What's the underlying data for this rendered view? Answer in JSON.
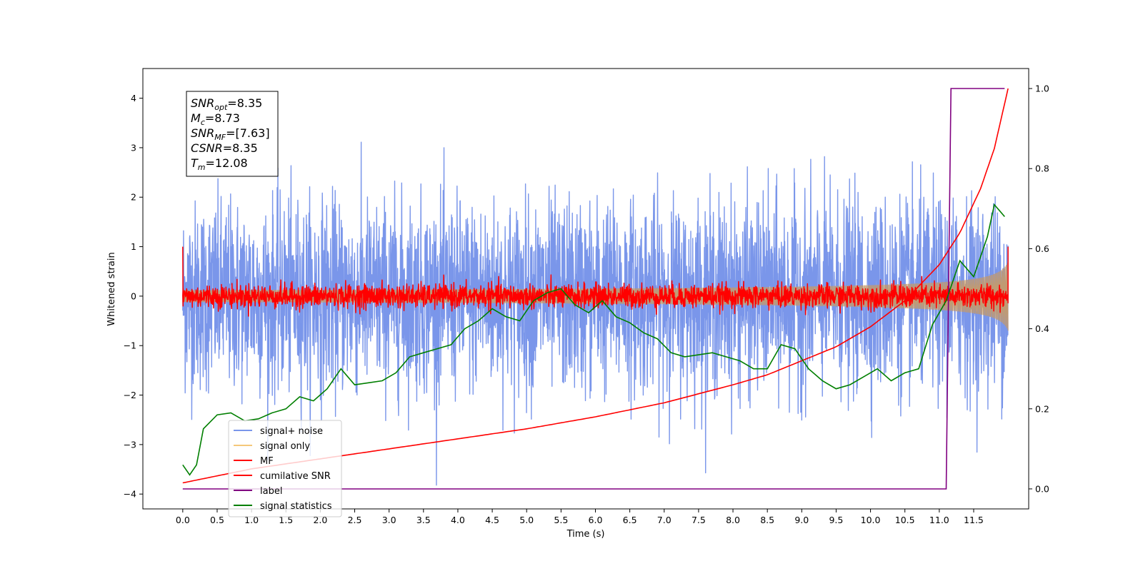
{
  "chart_data": {
    "type": "line",
    "xlabel": "Time (s)",
    "ylabel_left": "Whitened strain",
    "ylabel_right": "",
    "xlim": [
      -0.58,
      12.3
    ],
    "ylim_left": [
      -4.3,
      4.6
    ],
    "ylim_right": [
      -0.05,
      1.05
    ],
    "x_ticks": [
      "0.0",
      "0.5",
      "1.0",
      "1.5",
      "2.0",
      "2.5",
      "3.0",
      "3.5",
      "4.0",
      "4.5",
      "5.0",
      "5.5",
      "6.0",
      "6.5",
      "7.0",
      "7.5",
      "8.0",
      "8.5",
      "9.0",
      "9.5",
      "10.0",
      "10.5",
      "11.0",
      "11.5"
    ],
    "y_ticks_left": [
      -4,
      -3,
      -2,
      -1,
      0,
      1,
      2,
      3,
      4
    ],
    "y_ticks_right": [
      "0.0",
      "0.2",
      "0.4",
      "0.6",
      "0.8",
      "1.0"
    ],
    "grid": false,
    "legend_position": "lower-left",
    "info_box": {
      "lines": [
        {
          "sym": "SNR",
          "sub": "opt",
          "val": "=8.35"
        },
        {
          "sym": "M",
          "sub": "c",
          "val": "=8.73"
        },
        {
          "sym": "SNR",
          "sub": "MF",
          "val": "=[7.63]"
        },
        {
          "sym": "CSNR",
          "sub": "",
          "val": "=8.35"
        },
        {
          "sym": "T",
          "sub": "m",
          "val": "=12.08"
        }
      ]
    },
    "series": [
      {
        "name": "signal+ noise",
        "color": "#7a96ea",
        "axis": "left",
        "kind": "noise",
        "t_end": 12.0,
        "sigma": 0.95
      },
      {
        "name": "signal only",
        "color": "#f5c87a",
        "axis": "left",
        "kind": "chirp",
        "t_end": 12.0
      },
      {
        "name": "MF",
        "color": "#ff0000",
        "axis": "left",
        "kind": "noise",
        "t_end": 12.0,
        "sigma": 0.12
      },
      {
        "name": "cumilative SNR",
        "color": "#ff0000",
        "axis": "right",
        "x": [
          0.0,
          1.0,
          2.0,
          3.0,
          4.0,
          5.0,
          6.0,
          7.0,
          8.0,
          8.5,
          9.0,
          9.5,
          10.0,
          10.5,
          11.0,
          11.3,
          11.6,
          11.8,
          12.0
        ],
        "y": [
          0.015,
          0.05,
          0.075,
          0.1,
          0.125,
          0.15,
          0.18,
          0.215,
          0.26,
          0.285,
          0.32,
          0.355,
          0.405,
          0.47,
          0.56,
          0.64,
          0.75,
          0.85,
          1.0
        ]
      },
      {
        "name": "label",
        "color": "#800080",
        "axis": "right",
        "x": [
          0.0,
          11.1,
          11.17,
          11.95
        ],
        "y": [
          0.0,
          0.0,
          1.0,
          1.0
        ]
      },
      {
        "name": "signal statistics",
        "color": "#007f00",
        "axis": "right",
        "x": [
          0.0,
          0.1,
          0.2,
          0.3,
          0.5,
          0.7,
          0.9,
          1.1,
          1.3,
          1.5,
          1.7,
          1.9,
          2.1,
          2.3,
          2.5,
          2.7,
          2.9,
          3.1,
          3.3,
          3.5,
          3.7,
          3.9,
          4.1,
          4.3,
          4.5,
          4.7,
          4.9,
          5.1,
          5.3,
          5.5,
          5.7,
          5.9,
          6.1,
          6.3,
          6.5,
          6.7,
          6.9,
          7.1,
          7.3,
          7.5,
          7.7,
          7.9,
          8.1,
          8.3,
          8.5,
          8.7,
          8.9,
          9.1,
          9.3,
          9.5,
          9.7,
          9.9,
          10.1,
          10.3,
          10.5,
          10.7,
          10.9,
          11.1,
          11.3,
          11.5,
          11.7,
          11.8,
          11.95
        ],
        "y": [
          0.06,
          0.035,
          0.06,
          0.15,
          0.185,
          0.19,
          0.17,
          0.175,
          0.19,
          0.2,
          0.23,
          0.22,
          0.25,
          0.3,
          0.26,
          0.265,
          0.27,
          0.29,
          0.33,
          0.34,
          0.35,
          0.36,
          0.4,
          0.42,
          0.45,
          0.43,
          0.42,
          0.47,
          0.49,
          0.5,
          0.46,
          0.44,
          0.47,
          0.43,
          0.415,
          0.39,
          0.375,
          0.34,
          0.33,
          0.335,
          0.34,
          0.33,
          0.32,
          0.3,
          0.3,
          0.36,
          0.35,
          0.3,
          0.27,
          0.25,
          0.26,
          0.28,
          0.3,
          0.27,
          0.29,
          0.3,
          0.41,
          0.47,
          0.57,
          0.53,
          0.63,
          0.71,
          0.68
        ]
      }
    ]
  }
}
